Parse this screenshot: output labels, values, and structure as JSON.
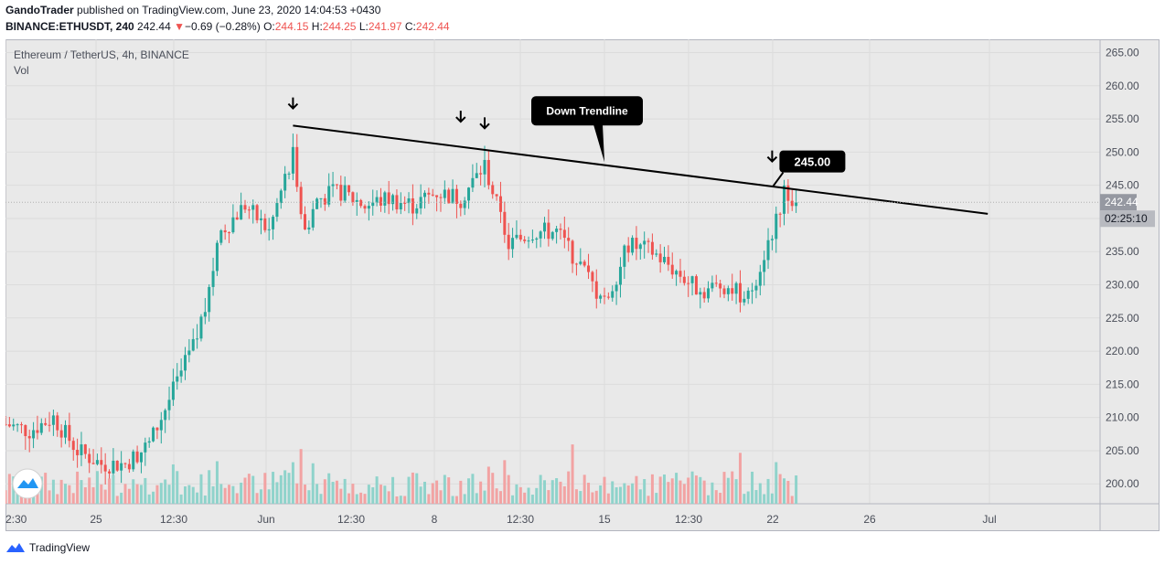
{
  "header": {
    "author": "GandoTrader",
    "published_text": " published on TradingView.com, June 23, 2020 14:04:53 +0430",
    "symbol": "BINANCE:ETHUSDT, 240",
    "last": "242.44",
    "change_arrow": "▼",
    "change": "−0.69 (−0.28%)",
    "o_label": "O:",
    "o_value": "244.15",
    "h_label": "H:",
    "h_value": "244.25",
    "l_label": "L:",
    "l_value": "241.97",
    "c_label": "C:",
    "c_value": "242.44"
  },
  "legend": {
    "title": "Ethereum / TetherUS, 4h, BINANCE",
    "vol": "Vol"
  },
  "footer": {
    "brand": "TradingView"
  },
  "colors": {
    "up": "#26a69a",
    "down": "#ef5350",
    "up_vol": "#8fd3cb",
    "down_vol": "#f2a3a3",
    "background": "#e9e9e9",
    "trendline": "#000000",
    "price_tag": "#9598a1"
  },
  "chart_data": {
    "type": "candlestick",
    "title": "Ethereum / TetherUS, 4h, BINANCE",
    "x_ticks": [
      "2:30",
      "25",
      "12:30",
      "Jun",
      "12:30",
      "8",
      "12:30",
      "15",
      "12:30",
      "22",
      "26",
      "Jul"
    ],
    "y_ticks": [
      "265.00",
      "260.00",
      "255.00",
      "250.00",
      "245.00",
      "240.00",
      "235.00",
      "230.00",
      "225.00",
      "220.00",
      "215.00",
      "210.00",
      "205.00",
      "200.00"
    ],
    "ylim": [
      197,
      267
    ],
    "last_price_label": "242.44",
    "countdown_label": "02:25:10",
    "price_waypoints": [
      {
        "date": "May 21",
        "price": 209
      },
      {
        "date": "May 22",
        "price": 208
      },
      {
        "date": "May 23",
        "price": 210
      },
      {
        "date": "May 24",
        "price": 205
      },
      {
        "date": "May 25",
        "price": 203
      },
      {
        "date": "May 26",
        "price": 203
      },
      {
        "date": "May 27",
        "price": 206
      },
      {
        "date": "May 28",
        "price": 214
      },
      {
        "date": "May 28 12:00",
        "price": 218
      },
      {
        "date": "May 29",
        "price": 222
      },
      {
        "date": "May 30",
        "price": 238
      },
      {
        "date": "May 31",
        "price": 242
      },
      {
        "date": "Jun 1",
        "price": 238
      },
      {
        "date": "Jun 2",
        "price": 250
      },
      {
        "date": "Jun 2 12:00",
        "price": 238
      },
      {
        "date": "Jun 3",
        "price": 243
      },
      {
        "date": "Jun 4",
        "price": 244
      },
      {
        "date": "Jun 5",
        "price": 242
      },
      {
        "date": "Jun 6",
        "price": 243
      },
      {
        "date": "Jun 7",
        "price": 242
      },
      {
        "date": "Jun 8",
        "price": 244
      },
      {
        "date": "Jun 9",
        "price": 243
      },
      {
        "date": "Jun 10",
        "price": 248
      },
      {
        "date": "Jun 11",
        "price": 236
      },
      {
        "date": "Jun 12",
        "price": 238
      },
      {
        "date": "Jun 13",
        "price": 238
      },
      {
        "date": "Jun 14",
        "price": 233
      },
      {
        "date": "Jun 15",
        "price": 227
      },
      {
        "date": "Jun 16",
        "price": 236
      },
      {
        "date": "Jun 17",
        "price": 235
      },
      {
        "date": "Jun 18",
        "price": 232
      },
      {
        "date": "Jun 19",
        "price": 229
      },
      {
        "date": "Jun 20",
        "price": 230
      },
      {
        "date": "Jun 21",
        "price": 228
      },
      {
        "date": "Jun 22",
        "price": 238
      },
      {
        "date": "Jun 22 12:00",
        "price": 244
      },
      {
        "date": "Jun 23",
        "price": 242.44
      }
    ],
    "trendline": {
      "label": "Down Trendline",
      "points": [
        {
          "date": "Jun 2",
          "price": 254
        },
        {
          "date": "Jul 1",
          "price": 240.7
        }
      ]
    },
    "annotations": [
      {
        "type": "arrow-down",
        "date": "Jun 2",
        "price": 257
      },
      {
        "type": "arrow-down",
        "date": "Jun 9",
        "price": 255
      },
      {
        "type": "arrow-down",
        "date": "Jun 10",
        "price": 254
      },
      {
        "type": "arrow-down",
        "date": "Jun 22",
        "price": 249
      },
      {
        "type": "callout",
        "text": "245.00",
        "date": "Jun 22",
        "price": 245
      },
      {
        "type": "callout",
        "text": "Down Trendline",
        "date": "Jun 15",
        "price": 248.5
      }
    ]
  }
}
